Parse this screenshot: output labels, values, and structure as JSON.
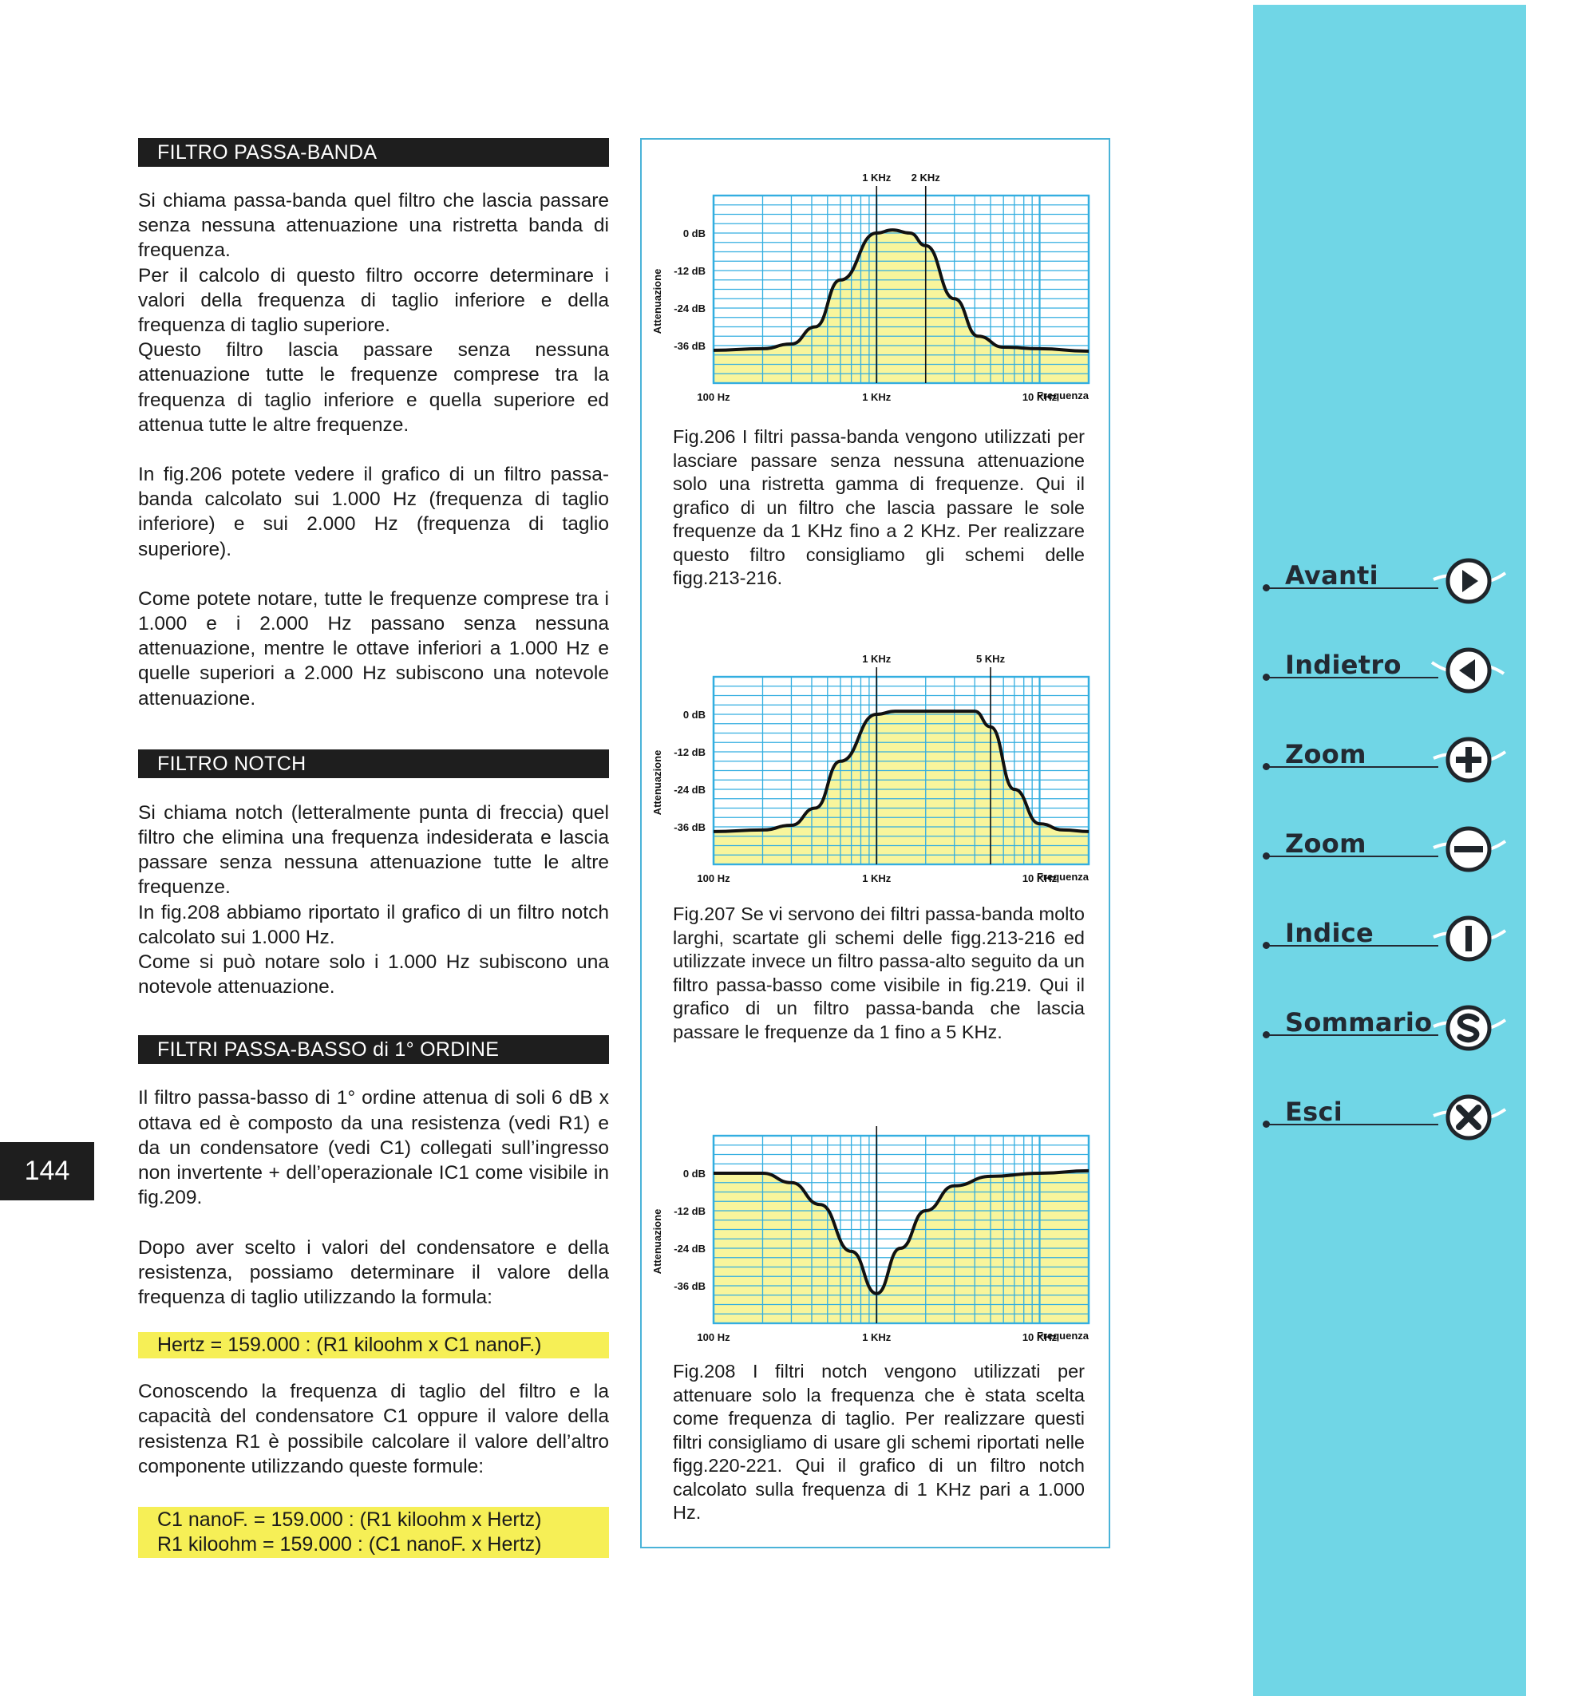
{
  "page_number": "144",
  "left_column": {
    "sections": [
      {
        "heading": "FILTRO PASSA-BANDA",
        "paragraphs": [
          "Si chiama passa-banda quel filtro che lascia passare senza nessuna attenuazione una ristretta banda di frequenza.",
          "Per il calcolo di questo filtro occorre determinare i valori della frequenza di taglio inferiore e della frequenza di taglio superiore.",
          "Questo filtro lascia passare senza nessuna attenuazione tutte le frequenze comprese tra la frequenza di taglio inferiore e quella superiore ed attenua tutte le altre frequenze.",
          "In fig.206 potete vedere il grafico di un filtro passa-banda calcolato sui 1.000 Hz (frequenza di taglio inferiore) e sui 2.000 Hz (frequenza di taglio superiore).",
          "Come potete notare, tutte le frequenze comprese tra i 1.000 e i 2.000 Hz passano senza nessuna attenuazione, mentre le ottave inferiori a 1.000 Hz e quelle superiori a 2.000 Hz subiscono una notevole attenuazione."
        ]
      },
      {
        "heading": "FILTRO NOTCH",
        "paragraphs": [
          "Si chiama notch (letteralmente punta di freccia) quel filtro che elimina una frequenza indesiderata e lascia passare senza nessuna attenuazione tutte le altre frequenze.",
          "In fig.208 abbiamo riportato il grafico di un filtro notch calcolato sui 1.000 Hz.",
          "Come si può notare solo i 1.000 Hz subiscono una notevole attenuazione."
        ]
      },
      {
        "heading": "FILTRI PASSA-BASSO di 1° ORDINE",
        "paragraphs": [
          "Il filtro passa-basso di 1° ordine attenua di soli 6 dB x ottava ed è composto da una resistenza (vedi R1) e da un condensatore (vedi C1) collegati sull’ingresso non invertente + dell’operazionale IC1 come visibile in fig.209.",
          "Dopo aver scelto i valori del condensatore e della resistenza, possiamo determinare il valore della frequenza di taglio utilizzando la formula:"
        ],
        "formula1": "Hertz = 159.000 : (R1 kiloohm x C1 nanoF.)",
        "paragraph_after": "Conoscendo la frequenza di taglio del filtro e la capacità del condensatore C1 oppure il valore della resistenza R1 è possibile calcolare il valore dell’altro componente utilizzando queste formule:",
        "formula2": [
          "C1 nanoF. = 159.000 : (R1 kiloohm x Hertz)",
          "R1 kiloohm = 159.000 : (C1 nanoF. x Hertz)"
        ]
      }
    ]
  },
  "chart_data": [
    {
      "type": "line",
      "figure": "Fig.206",
      "ylabel": "Attenuazione",
      "xlabel": "Frequenza",
      "x_scale": "log",
      "xlim": [
        100,
        20000
      ],
      "ylim": [
        -48,
        12
      ],
      "y_ticks": [
        {
          "v": 0,
          "label": "0 dB"
        },
        {
          "v": -12,
          "label": "-12 dB"
        },
        {
          "v": -24,
          "label": "-24 dB"
        },
        {
          "v": -36,
          "label": "-36 dB"
        }
      ],
      "x_ticks": [
        {
          "v": 100,
          "label": "100 Hz"
        },
        {
          "v": 1000,
          "label": "1 KHz"
        },
        {
          "v": 10000,
          "label": "10 KHz"
        }
      ],
      "markers": [
        {
          "v": 1000,
          "label": "1 KHz"
        },
        {
          "v": 2000,
          "label": "2 KHz"
        }
      ],
      "x": [
        100,
        200,
        300,
        420,
        600,
        1000,
        1250,
        1600,
        2000,
        3000,
        4200,
        6000,
        10000,
        20000
      ],
      "y": [
        -37.5,
        -37,
        -35.5,
        -30,
        -15,
        0,
        1,
        0,
        -4,
        -21,
        -33,
        -36.5,
        -37,
        -37.8
      ],
      "caption": "Fig.206 I filtri passa-banda vengono utilizzati per lasciare passare senza nessuna attenuazione solo una ristretta gamma di frequenze. Qui il grafico di un filtro che lascia passare le sole frequenze da 1 KHz fino a 2 KHz. Per realizzare questo filtro consigliamo gli schemi delle figg.213-216."
    },
    {
      "type": "line",
      "figure": "Fig.207",
      "ylabel": "Attenuazione",
      "xlabel": "Frequenza",
      "x_scale": "log",
      "xlim": [
        100,
        20000
      ],
      "ylim": [
        -48,
        12
      ],
      "y_ticks": [
        {
          "v": 0,
          "label": "0 dB"
        },
        {
          "v": -12,
          "label": "-12 dB"
        },
        {
          "v": -24,
          "label": "-24 dB"
        },
        {
          "v": -36,
          "label": "-36 dB"
        }
      ],
      "x_ticks": [
        {
          "v": 100,
          "label": "100 Hz"
        },
        {
          "v": 1000,
          "label": "1 KHz"
        },
        {
          "v": 10000,
          "label": "10 KHz"
        }
      ],
      "markers": [
        {
          "v": 1000,
          "label": "1 KHz"
        },
        {
          "v": 5000,
          "label": "5 KHz"
        }
      ],
      "x": [
        100,
        200,
        300,
        420,
        600,
        1000,
        1300,
        4000,
        5000,
        7000,
        10000,
        14000,
        20000
      ],
      "y": [
        -37.5,
        -37,
        -35.5,
        -30,
        -15,
        0,
        1,
        1,
        -4,
        -24,
        -35,
        -37,
        -37.5
      ],
      "caption": "Fig.207 Se vi servono dei filtri passa-banda molto larghi, scartate gli schemi delle figg.213-216 ed utilizzate invece un filtro passa-alto seguito da un filtro passa-basso come visibile in fig.219. Qui il grafico di un filtro passa-banda che lascia passare le frequenze da 1 fino a 5 KHz."
    },
    {
      "type": "line",
      "figure": "Fig.208",
      "ylabel": "Attenuazione",
      "xlabel": "Frequenza",
      "x_scale": "log",
      "xlim": [
        100,
        20000
      ],
      "ylim": [
        -48,
        12
      ],
      "y_ticks": [
        {
          "v": 0,
          "label": "0 dB"
        },
        {
          "v": -12,
          "label": "-12 dB"
        },
        {
          "v": -24,
          "label": "-24 dB"
        },
        {
          "v": -36,
          "label": "-36 dB"
        }
      ],
      "x_ticks": [
        {
          "v": 100,
          "label": "100 Hz"
        },
        {
          "v": 1000,
          "label": "1 KHz"
        },
        {
          "v": 10000,
          "label": "10 KHz"
        }
      ],
      "markers": [
        {
          "v": 1000,
          "label": ""
        }
      ],
      "x": [
        100,
        200,
        300,
        450,
        700,
        1000,
        1400,
        2000,
        3000,
        5000,
        10000,
        20000
      ],
      "y": [
        0,
        0,
        -3,
        -10,
        -25,
        -38.5,
        -24,
        -12,
        -4,
        -1,
        0,
        0.8
      ],
      "caption": "Fig.208 I filtri notch vengono utilizzati per attenuare solo la frequenza che è stata scelta come frequenza di taglio. Per realizzare questi filtri consigliamo di usare gli schemi riportati nelle figg.220-221. Qui il grafico di un filtro notch calcolato sulla frequenza di 1 KHz pari a 1.000 Hz."
    }
  ],
  "colors": {
    "grid": "#33aee0",
    "fill": "#f8f59c",
    "curve": "#111111",
    "sidebar": "#70d6e6",
    "heading_bg": "#1e1e1e",
    "formula_bg": "#f6ef56"
  },
  "nav": [
    {
      "label": "Avanti",
      "icon": "arrow-right-icon"
    },
    {
      "label": "Indietro",
      "icon": "arrow-left-icon"
    },
    {
      "label": "Zoom",
      "icon": "zoom-in-icon"
    },
    {
      "label": "Zoom",
      "icon": "zoom-out-icon"
    },
    {
      "label": "Indice",
      "icon": "index-icon"
    },
    {
      "label": "Sommario",
      "icon": "summary-icon"
    },
    {
      "label": "Esci",
      "icon": "exit-icon"
    }
  ]
}
